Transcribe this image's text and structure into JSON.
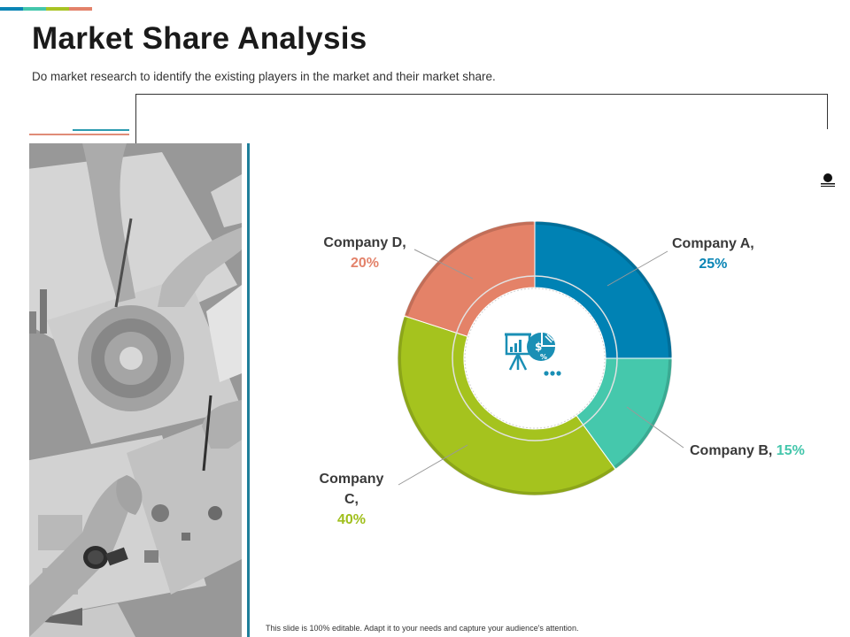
{
  "header": {
    "title": "Market Share Analysis",
    "subtitle": "Do market research to identify the existing players in the market and their market share."
  },
  "accent_colors": [
    "#0a85b5",
    "#43c6ab",
    "#a8c324",
    "#e3826a"
  ],
  "chart_data": {
    "type": "pie",
    "variant": "donut",
    "categories": [
      "Company A",
      "Company B",
      "Company C",
      "Company D"
    ],
    "values": [
      25,
      15,
      40,
      20
    ],
    "colors": [
      "#0082b4",
      "#45c8ac",
      "#a5c31e",
      "#e48268"
    ],
    "labels": [
      {
        "name": "Company A,",
        "value": "25%"
      },
      {
        "name": "Company B,",
        "value": "15%"
      },
      {
        "name": "Company C,",
        "value": "40%"
      },
      {
        "name": "Company D,",
        "value": "20%"
      }
    ],
    "center_icon": "presentation-board-pie-icon"
  },
  "footer": {
    "note": "This slide is 100% editable. Adapt it to your needs and capture your audience's attention."
  }
}
